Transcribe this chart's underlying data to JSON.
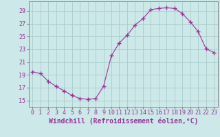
{
  "x": [
    0,
    1,
    2,
    3,
    4,
    5,
    6,
    7,
    8,
    9,
    10,
    11,
    12,
    13,
    14,
    15,
    16,
    17,
    18,
    19,
    20,
    21,
    22,
    23
  ],
  "y": [
    19.5,
    19.2,
    18.0,
    17.2,
    16.5,
    15.8,
    15.3,
    15.2,
    15.3,
    17.2,
    22.0,
    24.0,
    25.2,
    26.8,
    27.8,
    29.2,
    29.4,
    29.5,
    29.4,
    28.6,
    27.3,
    25.8,
    23.1,
    22.5
  ],
  "line_color": "#993399",
  "marker": "+",
  "marker_size": 4,
  "bg_color": "#cce8e8",
  "grid_color": "#aacccc",
  "xlabel": "Windchill (Refroidissement éolien,°C)",
  "xlabel_fontsize": 7,
  "tick_fontsize": 6,
  "ylim": [
    14.0,
    30.5
  ],
  "yticks": [
    15,
    17,
    19,
    21,
    23,
    25,
    27,
    29
  ],
  "xlim": [
    -0.5,
    23.5
  ],
  "xticks": [
    0,
    1,
    2,
    3,
    4,
    5,
    6,
    7,
    8,
    9,
    10,
    11,
    12,
    13,
    14,
    15,
    16,
    17,
    18,
    19,
    20,
    21,
    22,
    23
  ]
}
